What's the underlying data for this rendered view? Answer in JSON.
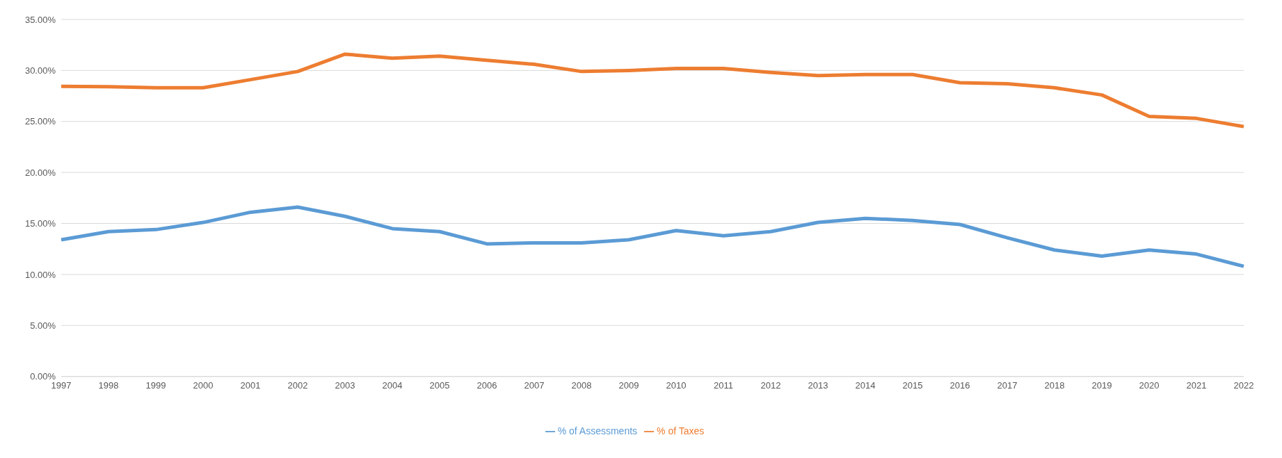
{
  "chart_data": {
    "type": "line",
    "categories": [
      "1997",
      "1998",
      "1999",
      "2000",
      "2001",
      "2002",
      "2003",
      "2004",
      "2005",
      "2006",
      "2007",
      "2008",
      "2009",
      "2010",
      "2011",
      "2012",
      "2013",
      "2014",
      "2015",
      "2016",
      "2017",
      "2018",
      "2019",
      "2020",
      "2021",
      "2022"
    ],
    "series": [
      {
        "name": "% of Assessments",
        "color": "#5b9bd5",
        "values": [
          13.4,
          14.2,
          14.4,
          15.1,
          16.1,
          16.6,
          15.7,
          14.5,
          14.2,
          13.0,
          13.1,
          13.1,
          13.4,
          14.3,
          13.8,
          14.2,
          15.1,
          15.5,
          15.3,
          14.9,
          13.6,
          12.4,
          11.8,
          12.4,
          12.0,
          10.8
        ]
      },
      {
        "name": "% of Taxes",
        "color": "#ed7d31",
        "values": [
          28.45,
          28.4,
          28.3,
          28.3,
          29.1,
          29.9,
          31.6,
          31.2,
          31.4,
          31.0,
          30.6,
          29.9,
          30.0,
          30.2,
          30.2,
          29.8,
          29.5,
          29.6,
          29.6,
          28.8,
          28.7,
          28.3,
          27.6,
          25.5,
          25.3,
          24.5
        ]
      }
    ],
    "ylim": [
      0,
      35
    ],
    "yticks": [
      {
        "value": 0,
        "label": "0.00%"
      },
      {
        "value": 5,
        "label": "5.00%"
      },
      {
        "value": 10,
        "label": "10.00%"
      },
      {
        "value": 15,
        "label": "15.00%"
      },
      {
        "value": 20,
        "label": "20.00%"
      },
      {
        "value": 25,
        "label": "25.00%"
      },
      {
        "value": 30,
        "label": "30.00%"
      },
      {
        "value": 35,
        "label": "35.00%"
      }
    ],
    "grid": "y",
    "legend": "bottom",
    "marker": "none",
    "line_style": "solid"
  }
}
